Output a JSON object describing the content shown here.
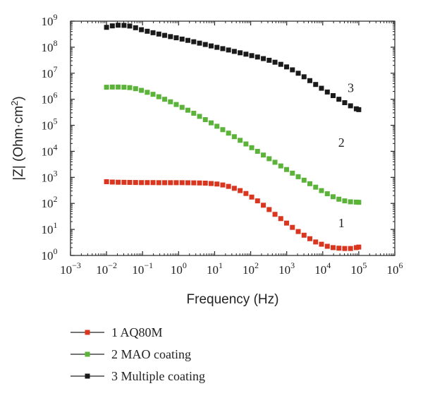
{
  "chart_data": {
    "type": "scatter",
    "title": "",
    "xlabel": "Frequency (Hz)",
    "ylabel": {
      "main": "|Z| (Ohm·cm",
      "sup": "2",
      "close": ")"
    },
    "x_scale": "log",
    "y_scale": "log",
    "xlim": [
      0.001,
      1000000
    ],
    "ylim": [
      1,
      1000000000
    ],
    "x_ticks": [
      {
        "base": "10",
        "exp": "−3",
        "value": 0.001
      },
      {
        "base": "10",
        "exp": "−2",
        "value": 0.01
      },
      {
        "base": "10",
        "exp": "−1",
        "value": 0.1
      },
      {
        "base": "10",
        "exp": "0",
        "value": 1
      },
      {
        "base": "10",
        "exp": "1",
        "value": 10
      },
      {
        "base": "10",
        "exp": "2",
        "value": 100
      },
      {
        "base": "10",
        "exp": "3",
        "value": 1000
      },
      {
        "base": "10",
        "exp": "4",
        "value": 10000
      },
      {
        "base": "10",
        "exp": "5",
        "value": 100000
      },
      {
        "base": "10",
        "exp": "6",
        "value": 1000000
      }
    ],
    "y_ticks": [
      {
        "base": "10",
        "exp": "0",
        "value": 1
      },
      {
        "base": "10",
        "exp": "1",
        "value": 10
      },
      {
        "base": "10",
        "exp": "2",
        "value": 100
      },
      {
        "base": "10",
        "exp": "3",
        "value": 1000
      },
      {
        "base": "10",
        "exp": "4",
        "value": 10000
      },
      {
        "base": "10",
        "exp": "5",
        "value": 100000
      },
      {
        "base": "10",
        "exp": "6",
        "value": 1000000
      },
      {
        "base": "10",
        "exp": "7",
        "value": 10000000
      },
      {
        "base": "10",
        "exp": "8",
        "value": 100000000
      },
      {
        "base": "10",
        "exp": "9",
        "value": 1000000000
      }
    ],
    "grid": false,
    "legend_position": "bottom-left",
    "series": [
      {
        "name": "1 AQ80M",
        "label": "1",
        "color": "#d9351f",
        "label_x": 33000,
        "label_y": 12,
        "points": [
          [
            0.01,
            680
          ],
          [
            0.0145,
            660
          ],
          [
            0.021,
            650
          ],
          [
            0.0305,
            645
          ],
          [
            0.044,
            640
          ],
          [
            0.064,
            635
          ],
          [
            0.093,
            630
          ],
          [
            0.135,
            630
          ],
          [
            0.195,
            630
          ],
          [
            0.283,
            625
          ],
          [
            0.41,
            625
          ],
          [
            0.595,
            625
          ],
          [
            0.86,
            625
          ],
          [
            1.25,
            625
          ],
          [
            1.81,
            620
          ],
          [
            2.63,
            615
          ],
          [
            3.81,
            610
          ],
          [
            5.52,
            600
          ],
          [
            8,
            580
          ],
          [
            11.6,
            555
          ],
          [
            16.8,
            510
          ],
          [
            24.3,
            450
          ],
          [
            35.2,
            380
          ],
          [
            51,
            310
          ],
          [
            74,
            240
          ],
          [
            107,
            175
          ],
          [
            155,
            125
          ],
          [
            225,
            85
          ],
          [
            326,
            58
          ],
          [
            473,
            38
          ],
          [
            685,
            26
          ],
          [
            993,
            17.5
          ],
          [
            1440,
            12
          ],
          [
            2090,
            8.3
          ],
          [
            3030,
            6
          ],
          [
            4390,
            4.4
          ],
          [
            6360,
            3.3
          ],
          [
            9220,
            2.7
          ],
          [
            13400,
            2.25
          ],
          [
            19400,
            2
          ],
          [
            28100,
            1.9
          ],
          [
            40700,
            1.85
          ],
          [
            59000,
            1.85
          ],
          [
            85500,
            2
          ],
          [
            100000,
            2.1
          ]
        ]
      },
      {
        "name": "2 MAO coating",
        "label": "2",
        "color": "#5cb33a",
        "label_x": 33000,
        "label_y": 15000,
        "points": [
          [
            0.01,
            2900000
          ],
          [
            0.0145,
            2950000
          ],
          [
            0.021,
            2950000
          ],
          [
            0.0305,
            2900000
          ],
          [
            0.044,
            2800000
          ],
          [
            0.064,
            2550000
          ],
          [
            0.093,
            2200000
          ],
          [
            0.135,
            1850000
          ],
          [
            0.195,
            1550000
          ],
          [
            0.283,
            1250000
          ],
          [
            0.41,
            1000000
          ],
          [
            0.595,
            800000
          ],
          [
            0.86,
            630000
          ],
          [
            1.25,
            490000
          ],
          [
            1.81,
            380000
          ],
          [
            2.63,
            290000
          ],
          [
            3.81,
            220000
          ],
          [
            5.52,
            165000
          ],
          [
            8,
            124000
          ],
          [
            11.6,
            92000
          ],
          [
            16.8,
            68000
          ],
          [
            24.3,
            50000
          ],
          [
            35.2,
            36500
          ],
          [
            51,
            26500
          ],
          [
            74,
            19200
          ],
          [
            107,
            13800
          ],
          [
            155,
            10000
          ],
          [
            225,
            7200
          ],
          [
            326,
            5200
          ],
          [
            473,
            3800
          ],
          [
            685,
            2750
          ],
          [
            993,
            2000
          ],
          [
            1440,
            1450
          ],
          [
            2090,
            1060
          ],
          [
            3030,
            780
          ],
          [
            4390,
            570
          ],
          [
            6360,
            420
          ],
          [
            9220,
            310
          ],
          [
            13400,
            235
          ],
          [
            19400,
            180
          ],
          [
            28100,
            145
          ],
          [
            40700,
            125
          ],
          [
            59000,
            115
          ],
          [
            85500,
            112
          ],
          [
            100000,
            110
          ]
        ]
      },
      {
        "name": "3 Multiple coating",
        "label": "3",
        "color": "#1a1a1a",
        "label_x": 60000,
        "label_y": 1900000,
        "points": [
          [
            0.01,
            580000000
          ],
          [
            0.0145,
            660000000
          ],
          [
            0.021,
            700000000
          ],
          [
            0.0305,
            690000000
          ],
          [
            0.044,
            650000000
          ],
          [
            0.064,
            560000000
          ],
          [
            0.093,
            470000000
          ],
          [
            0.135,
            410000000
          ],
          [
            0.195,
            360000000
          ],
          [
            0.283,
            320000000
          ],
          [
            0.41,
            285000000
          ],
          [
            0.595,
            255000000
          ],
          [
            0.86,
            230000000
          ],
          [
            1.25,
            205000000
          ],
          [
            1.81,
            183000000
          ],
          [
            2.63,
            162000000
          ],
          [
            3.81,
            143000000
          ],
          [
            5.52,
            127000000
          ],
          [
            8,
            112000000
          ],
          [
            11.6,
            99000000
          ],
          [
            16.8,
            88000000
          ],
          [
            24.3,
            78000000
          ],
          [
            35.2,
            69000000
          ],
          [
            51,
            61000000
          ],
          [
            74,
            54000000
          ],
          [
            107,
            47500000
          ],
          [
            155,
            42000000
          ],
          [
            225,
            36500000
          ],
          [
            326,
            31500000
          ],
          [
            473,
            26500000
          ],
          [
            685,
            22000000
          ],
          [
            993,
            17500000
          ],
          [
            1440,
            13500000
          ],
          [
            2090,
            10000000
          ],
          [
            3030,
            7300000
          ],
          [
            4390,
            5200000
          ],
          [
            6360,
            3700000
          ],
          [
            9220,
            2650000
          ],
          [
            13400,
            1900000
          ],
          [
            19400,
            1380000
          ],
          [
            28100,
            1000000
          ],
          [
            40700,
            740000
          ],
          [
            59000,
            560000
          ],
          [
            85500,
            430000
          ],
          [
            100000,
            400000
          ]
        ]
      }
    ]
  }
}
